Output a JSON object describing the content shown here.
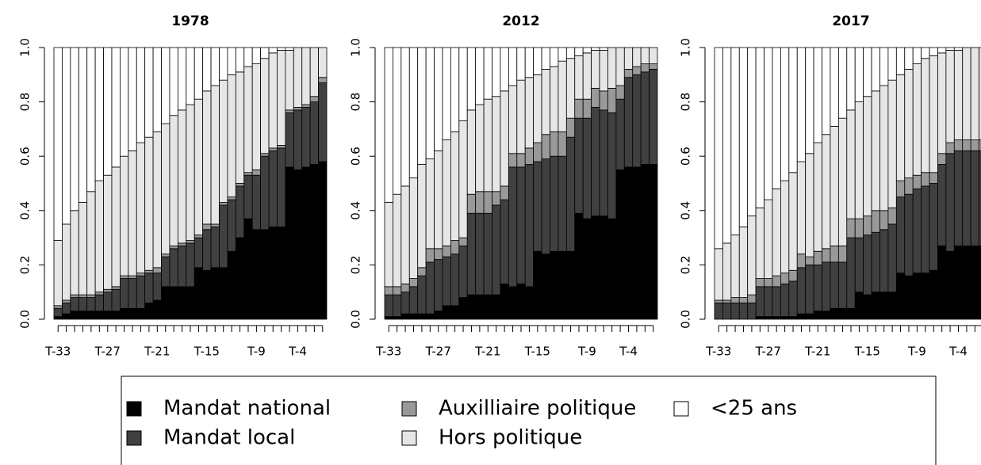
{
  "chart_data": [
    {
      "type": "bar",
      "stacked": true,
      "title": "1978",
      "categories": [
        "T-33",
        null,
        null,
        null,
        null,
        null,
        "T-27",
        null,
        null,
        null,
        null,
        null,
        "T-21",
        null,
        null,
        null,
        null,
        null,
        "T-15",
        null,
        null,
        null,
        null,
        null,
        "T-9",
        null,
        null,
        null,
        null,
        "T-4",
        null,
        null,
        null
      ],
      "ylim": [
        0,
        1
      ],
      "yticks": [
        {
          "value": 0,
          "label": "0.0"
        },
        {
          "value": 0.2,
          "label": "0.2"
        },
        {
          "value": 0.4,
          "label": "0.4"
        },
        {
          "value": 0.6,
          "label": "0.6"
        },
        {
          "value": 0.8,
          "label": "0.8"
        },
        {
          "value": 1,
          "label": "1.0"
        }
      ],
      "series": [
        {
          "values": [
            0.01,
            0.02,
            0.03,
            0.03,
            0.03,
            0.03,
            0.03,
            0.03,
            0.04,
            0.04,
            0.04,
            0.06,
            0.07,
            0.12,
            0.12,
            0.12,
            0.12,
            0.19,
            0.18,
            0.19,
            0.19,
            0.25,
            0.3,
            0.37,
            0.33,
            0.33,
            0.34,
            0.34,
            0.56,
            0.55,
            0.56,
            0.57,
            0.58
          ]
        },
        {
          "values": [
            0.03,
            0.04,
            0.05,
            0.05,
            0.05,
            0.06,
            0.07,
            0.08,
            0.11,
            0.11,
            0.12,
            0.11,
            0.1,
            0.11,
            0.14,
            0.15,
            0.16,
            0.11,
            0.15,
            0.15,
            0.23,
            0.19,
            0.19,
            0.16,
            0.2,
            0.27,
            0.28,
            0.29,
            0.2,
            0.22,
            0.22,
            0.23,
            0.29
          ]
        },
        {
          "values": [
            0.01,
            0.01,
            0.01,
            0.01,
            0.01,
            0.01,
            0.01,
            0.01,
            0.01,
            0.01,
            0.01,
            0.01,
            0.02,
            0.01,
            0.01,
            0.01,
            0.01,
            0.01,
            0.02,
            0.01,
            0.01,
            0.01,
            0.01,
            0.01,
            0.02,
            0.01,
            0.01,
            0.01,
            0.01,
            0.01,
            0.01,
            0.02,
            0.02
          ]
        },
        {
          "values": [
            0.24,
            0.28,
            0.31,
            0.34,
            0.38,
            0.41,
            0.42,
            0.44,
            0.44,
            0.46,
            0.48,
            0.49,
            0.5,
            0.48,
            0.48,
            0.49,
            0.5,
            0.5,
            0.49,
            0.51,
            0.45,
            0.45,
            0.41,
            0.39,
            0.39,
            0.35,
            0.35,
            0.35,
            0.22,
            0.22,
            0.21,
            0.18,
            0.11
          ]
        },
        {
          "values": [
            0.71,
            0.65,
            0.6,
            0.57,
            0.53,
            0.49,
            0.47,
            0.44,
            0.4,
            0.38,
            0.35,
            0.33,
            0.31,
            0.28,
            0.25,
            0.23,
            0.21,
            0.19,
            0.16,
            0.14,
            0.12,
            0.1,
            0.09,
            0.07,
            0.06,
            0.04,
            0.02,
            0.01,
            0.01,
            0,
            0,
            0,
            0
          ]
        }
      ]
    },
    {
      "type": "bar",
      "stacked": true,
      "title": "2012",
      "categories": [
        "T-33",
        null,
        null,
        null,
        null,
        null,
        "T-27",
        null,
        null,
        null,
        null,
        null,
        "T-21",
        null,
        null,
        null,
        null,
        null,
        "T-15",
        null,
        null,
        null,
        null,
        null,
        "T-9",
        null,
        null,
        null,
        null,
        "T-4",
        null,
        null,
        null
      ],
      "ylim": [
        0,
        1
      ],
      "yticks": [
        {
          "value": 0,
          "label": "0.0"
        },
        {
          "value": 0.2,
          "label": "0.2"
        },
        {
          "value": 0.4,
          "label": "0.4"
        },
        {
          "value": 0.6,
          "label": "0.6"
        },
        {
          "value": 0.8,
          "label": "0.8"
        },
        {
          "value": 1,
          "label": "1.0"
        }
      ],
      "series": [
        {
          "values": [
            0.01,
            0.01,
            0.02,
            0.02,
            0.02,
            0.02,
            0.03,
            0.05,
            0.05,
            0.08,
            0.09,
            0.09,
            0.09,
            0.09,
            0.13,
            0.12,
            0.13,
            0.12,
            0.25,
            0.24,
            0.25,
            0.25,
            0.25,
            0.39,
            0.37,
            0.38,
            0.38,
            0.37,
            0.55,
            0.56,
            0.56,
            0.57,
            0.57
          ]
        },
        {
          "values": [
            0.08,
            0.08,
            0.08,
            0.1,
            0.14,
            0.19,
            0.19,
            0.18,
            0.19,
            0.19,
            0.3,
            0.3,
            0.3,
            0.33,
            0.31,
            0.44,
            0.43,
            0.45,
            0.33,
            0.35,
            0.35,
            0.35,
            0.42,
            0.35,
            0.37,
            0.4,
            0.39,
            0.39,
            0.26,
            0.33,
            0.34,
            0.34,
            0.35
          ]
        },
        {
          "values": [
            0.03,
            0.03,
            0.03,
            0.03,
            0.03,
            0.05,
            0.04,
            0.04,
            0.05,
            0.03,
            0.07,
            0.08,
            0.08,
            0.05,
            0.05,
            0.05,
            0.05,
            0.06,
            0.07,
            0.09,
            0.09,
            0.09,
            0.07,
            0.07,
            0.07,
            0.07,
            0.07,
            0.09,
            0.05,
            0.03,
            0.03,
            0.03,
            0.02
          ]
        },
        {
          "values": [
            0.31,
            0.34,
            0.36,
            0.37,
            0.38,
            0.33,
            0.36,
            0.39,
            0.4,
            0.43,
            0.31,
            0.32,
            0.34,
            0.35,
            0.35,
            0.25,
            0.27,
            0.26,
            0.25,
            0.24,
            0.24,
            0.26,
            0.22,
            0.16,
            0.17,
            0.14,
            0.15,
            0.15,
            0.14,
            0.08,
            0.07,
            0.06,
            0.06
          ]
        },
        {
          "values": [
            0.57,
            0.54,
            0.51,
            0.48,
            0.43,
            0.41,
            0.38,
            0.34,
            0.31,
            0.27,
            0.23,
            0.21,
            0.19,
            0.18,
            0.16,
            0.14,
            0.12,
            0.11,
            0.1,
            0.08,
            0.07,
            0.05,
            0.04,
            0.03,
            0.02,
            0.01,
            0.01,
            0,
            0,
            0,
            0,
            0,
            0
          ]
        }
      ]
    },
    {
      "type": "bar",
      "stacked": true,
      "title": "2017",
      "categories": [
        "T-33",
        null,
        null,
        null,
        null,
        null,
        "T-27",
        null,
        null,
        null,
        null,
        null,
        "T-21",
        null,
        null,
        null,
        null,
        null,
        "T-15",
        null,
        null,
        null,
        null,
        null,
        "T-9",
        null,
        null,
        null,
        null,
        "T-4",
        null,
        null,
        null
      ],
      "ylim": [
        0,
        1
      ],
      "yticks": [
        {
          "value": 0,
          "label": "0.0"
        },
        {
          "value": 0.2,
          "label": "0.2"
        },
        {
          "value": 0.4,
          "label": "0.4"
        },
        {
          "value": 0.6,
          "label": "0.6"
        },
        {
          "value": 0.8,
          "label": "0.8"
        },
        {
          "value": 1,
          "label": "1.0"
        }
      ],
      "series": [
        {
          "values": [
            0,
            0,
            0,
            0,
            0,
            0.01,
            0.01,
            0.01,
            0.01,
            0.01,
            0.02,
            0.02,
            0.03,
            0.03,
            0.04,
            0.04,
            0.04,
            0.1,
            0.09,
            0.1,
            0.1,
            0.1,
            0.17,
            0.16,
            0.17,
            0.17,
            0.18,
            0.27,
            0.25,
            0.27,
            0.27,
            0.27,
            0.27
          ]
        },
        {
          "values": [
            0.06,
            0.06,
            0.06,
            0.06,
            0.06,
            0.11,
            0.11,
            0.11,
            0.12,
            0.13,
            0.17,
            0.18,
            0.17,
            0.18,
            0.17,
            0.17,
            0.26,
            0.2,
            0.22,
            0.22,
            0.23,
            0.25,
            0.28,
            0.3,
            0.31,
            0.32,
            0.32,
            0.3,
            0.36,
            0.35,
            0.35,
            0.35,
            0.35
          ]
        },
        {
          "values": [
            0.01,
            0.01,
            0.02,
            0.02,
            0.03,
            0.03,
            0.03,
            0.04,
            0.04,
            0.04,
            0.05,
            0.03,
            0.05,
            0.05,
            0.06,
            0.06,
            0.07,
            0.07,
            0.07,
            0.08,
            0.07,
            0.06,
            0.06,
            0.06,
            0.05,
            0.05,
            0.04,
            0.04,
            0.04,
            0.04,
            0.04,
            0.04,
            0.04
          ]
        },
        {
          "values": [
            0.19,
            0.21,
            0.23,
            0.26,
            0.29,
            0.26,
            0.29,
            0.32,
            0.34,
            0.36,
            0.34,
            0.38,
            0.4,
            0.42,
            0.44,
            0.47,
            0.4,
            0.43,
            0.44,
            0.44,
            0.46,
            0.47,
            0.39,
            0.4,
            0.41,
            0.42,
            0.43,
            0.37,
            0.34,
            0.33,
            0.34,
            0.34,
            0.34
          ]
        },
        {
          "values": [
            0.74,
            0.72,
            0.69,
            0.66,
            0.62,
            0.59,
            0.56,
            0.52,
            0.49,
            0.46,
            0.42,
            0.39,
            0.35,
            0.32,
            0.29,
            0.26,
            0.23,
            0.2,
            0.18,
            0.16,
            0.14,
            0.12,
            0.1,
            0.08,
            0.06,
            0.04,
            0.03,
            0.02,
            0.01,
            0.01,
            0,
            0,
            0
          ]
        }
      ]
    }
  ],
  "legend": {
    "entries": [
      {
        "name": "Mandat national",
        "color": "#000000"
      },
      {
        "name": "Mandat local",
        "color": "#404040"
      },
      {
        "name": "Auxilliaire politique",
        "color": "#999999"
      },
      {
        "name": "Hors politique",
        "color": "#e6e6e6"
      },
      {
        "name": "<25 ans",
        "color": "#ffffff"
      }
    ]
  }
}
